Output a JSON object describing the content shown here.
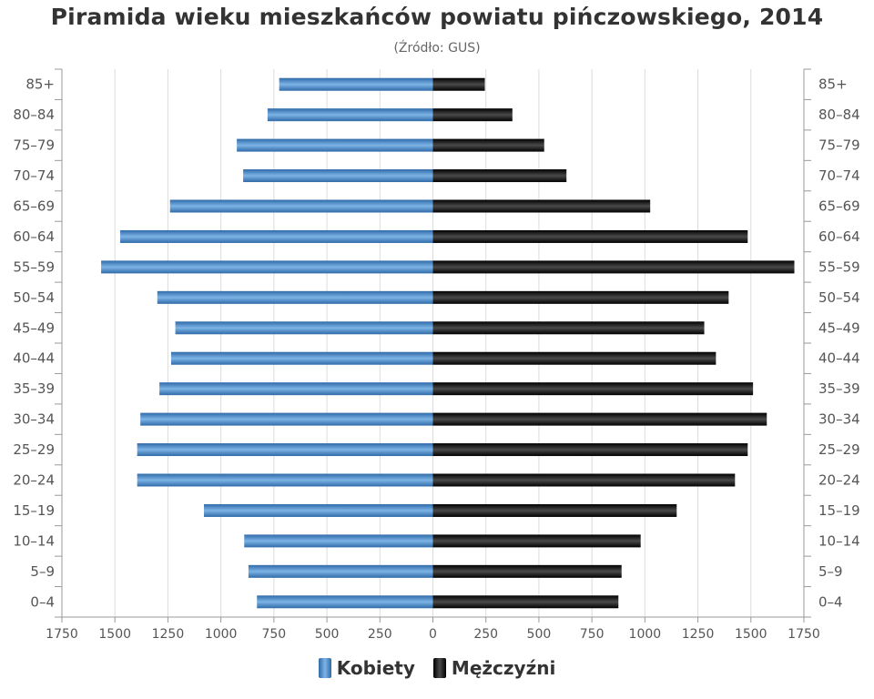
{
  "title": "Piramida wieku mieszkańców powiatu pińczowskiego, 2014",
  "subtitle": "(Źródło: GUS)",
  "colors": {
    "women": "#4a88c7",
    "men": "#1c1c1c",
    "grid": "#dcdcdc",
    "axis": "#999999",
    "text": "#555555"
  },
  "chart_data": {
    "type": "bar",
    "orientation": "horizontal-population-pyramid",
    "categories": [
      "85+",
      "80–84",
      "75–79",
      "70–74",
      "65–69",
      "60–64",
      "55–59",
      "50–54",
      "45–49",
      "40–44",
      "35–39",
      "30–34",
      "25–29",
      "20–24",
      "15–19",
      "10–14",
      "5–9",
      "0–4"
    ],
    "series": [
      {
        "name": "Kobiety",
        "side": "left",
        "color": "#4a88c7",
        "values": [
          725,
          780,
          925,
          895,
          1240,
          1475,
          1565,
          1300,
          1215,
          1235,
          1290,
          1380,
          1395,
          1395,
          1080,
          890,
          870,
          830
        ]
      },
      {
        "name": "Mężczyźni",
        "side": "right",
        "color": "#1c1c1c",
        "values": [
          245,
          375,
          525,
          630,
          1025,
          1485,
          1705,
          1395,
          1280,
          1335,
          1510,
          1575,
          1485,
          1425,
          1150,
          980,
          890,
          875
        ]
      }
    ],
    "x_ticks": [
      "1750",
      "1500",
      "1250",
      "1000",
      "750",
      "500",
      "250",
      "0",
      "250",
      "500",
      "750",
      "1000",
      "1250",
      "1500",
      "1750"
    ],
    "xlim": [
      -1750,
      1750
    ],
    "grid": true,
    "legend_position": "bottom-center"
  },
  "legend": {
    "women_label": "Kobiety",
    "men_label": "Mężczyźni"
  }
}
